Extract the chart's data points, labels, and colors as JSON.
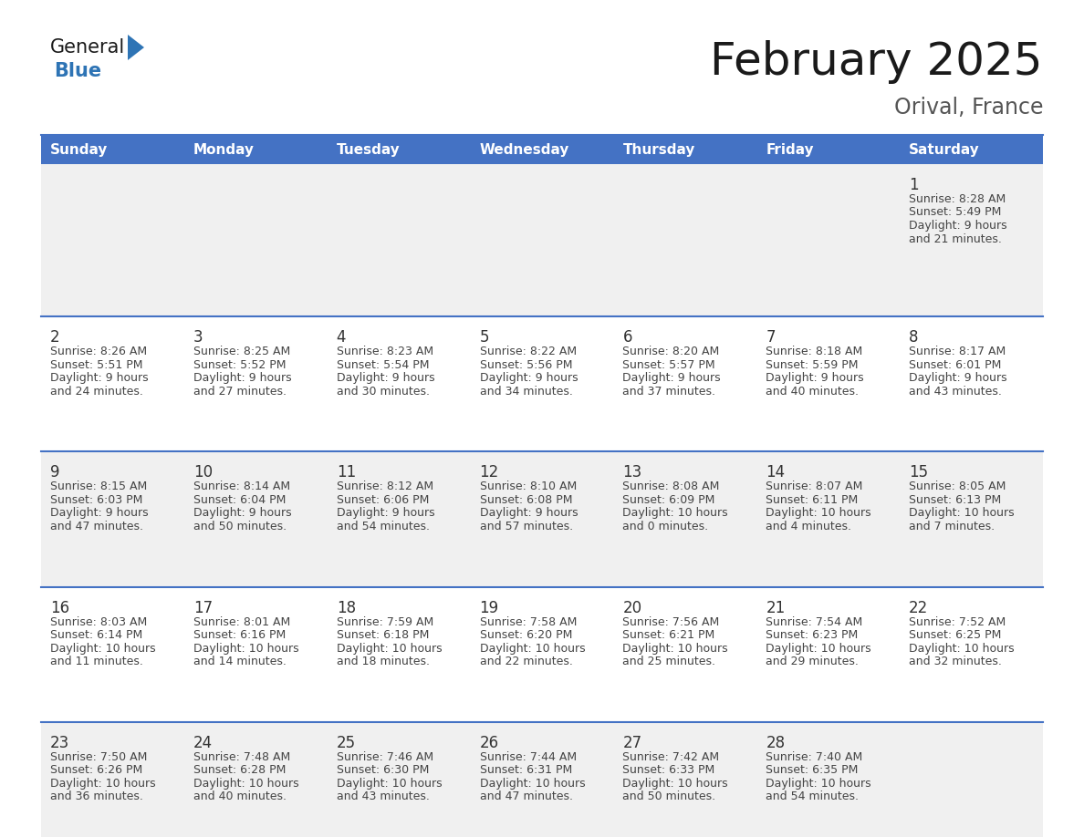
{
  "title": "February 2025",
  "subtitle": "Orival, France",
  "days_of_week": [
    "Sunday",
    "Monday",
    "Tuesday",
    "Wednesday",
    "Thursday",
    "Friday",
    "Saturday"
  ],
  "header_bg": "#4472C4",
  "header_text_color": "#FFFFFF",
  "cell_bg_odd": "#F0F0F0",
  "cell_bg_even": "#FFFFFF",
  "border_color": "#4472C4",
  "text_color": "#444444",
  "day_num_color": "#333333",
  "title_color": "#1a1a1a",
  "subtitle_color": "#555555",
  "logo_general_color": "#1a1a1a",
  "logo_blue_color": "#2E74B5",
  "calendar_data": [
    [
      null,
      null,
      null,
      null,
      null,
      null,
      {
        "day": 1,
        "sunrise": "8:28 AM",
        "sunset": "5:49 PM",
        "daylight": "9 hours\nand 21 minutes."
      }
    ],
    [
      {
        "day": 2,
        "sunrise": "8:26 AM",
        "sunset": "5:51 PM",
        "daylight": "9 hours\nand 24 minutes."
      },
      {
        "day": 3,
        "sunrise": "8:25 AM",
        "sunset": "5:52 PM",
        "daylight": "9 hours\nand 27 minutes."
      },
      {
        "day": 4,
        "sunrise": "8:23 AM",
        "sunset": "5:54 PM",
        "daylight": "9 hours\nand 30 minutes."
      },
      {
        "day": 5,
        "sunrise": "8:22 AM",
        "sunset": "5:56 PM",
        "daylight": "9 hours\nand 34 minutes."
      },
      {
        "day": 6,
        "sunrise": "8:20 AM",
        "sunset": "5:57 PM",
        "daylight": "9 hours\nand 37 minutes."
      },
      {
        "day": 7,
        "sunrise": "8:18 AM",
        "sunset": "5:59 PM",
        "daylight": "9 hours\nand 40 minutes."
      },
      {
        "day": 8,
        "sunrise": "8:17 AM",
        "sunset": "6:01 PM",
        "daylight": "9 hours\nand 43 minutes."
      }
    ],
    [
      {
        "day": 9,
        "sunrise": "8:15 AM",
        "sunset": "6:03 PM",
        "daylight": "9 hours\nand 47 minutes."
      },
      {
        "day": 10,
        "sunrise": "8:14 AM",
        "sunset": "6:04 PM",
        "daylight": "9 hours\nand 50 minutes."
      },
      {
        "day": 11,
        "sunrise": "8:12 AM",
        "sunset": "6:06 PM",
        "daylight": "9 hours\nand 54 minutes."
      },
      {
        "day": 12,
        "sunrise": "8:10 AM",
        "sunset": "6:08 PM",
        "daylight": "9 hours\nand 57 minutes."
      },
      {
        "day": 13,
        "sunrise": "8:08 AM",
        "sunset": "6:09 PM",
        "daylight": "10 hours\nand 0 minutes."
      },
      {
        "day": 14,
        "sunrise": "8:07 AM",
        "sunset": "6:11 PM",
        "daylight": "10 hours\nand 4 minutes."
      },
      {
        "day": 15,
        "sunrise": "8:05 AM",
        "sunset": "6:13 PM",
        "daylight": "10 hours\nand 7 minutes."
      }
    ],
    [
      {
        "day": 16,
        "sunrise": "8:03 AM",
        "sunset": "6:14 PM",
        "daylight": "10 hours\nand 11 minutes."
      },
      {
        "day": 17,
        "sunrise": "8:01 AM",
        "sunset": "6:16 PM",
        "daylight": "10 hours\nand 14 minutes."
      },
      {
        "day": 18,
        "sunrise": "7:59 AM",
        "sunset": "6:18 PM",
        "daylight": "10 hours\nand 18 minutes."
      },
      {
        "day": 19,
        "sunrise": "7:58 AM",
        "sunset": "6:20 PM",
        "daylight": "10 hours\nand 22 minutes."
      },
      {
        "day": 20,
        "sunrise": "7:56 AM",
        "sunset": "6:21 PM",
        "daylight": "10 hours\nand 25 minutes."
      },
      {
        "day": 21,
        "sunrise": "7:54 AM",
        "sunset": "6:23 PM",
        "daylight": "10 hours\nand 29 minutes."
      },
      {
        "day": 22,
        "sunrise": "7:52 AM",
        "sunset": "6:25 PM",
        "daylight": "10 hours\nand 32 minutes."
      }
    ],
    [
      {
        "day": 23,
        "sunrise": "7:50 AM",
        "sunset": "6:26 PM",
        "daylight": "10 hours\nand 36 minutes."
      },
      {
        "day": 24,
        "sunrise": "7:48 AM",
        "sunset": "6:28 PM",
        "daylight": "10 hours\nand 40 minutes."
      },
      {
        "day": 25,
        "sunrise": "7:46 AM",
        "sunset": "6:30 PM",
        "daylight": "10 hours\nand 43 minutes."
      },
      {
        "day": 26,
        "sunrise": "7:44 AM",
        "sunset": "6:31 PM",
        "daylight": "10 hours\nand 47 minutes."
      },
      {
        "day": 27,
        "sunrise": "7:42 AM",
        "sunset": "6:33 PM",
        "daylight": "10 hours\nand 50 minutes."
      },
      {
        "day": 28,
        "sunrise": "7:40 AM",
        "sunset": "6:35 PM",
        "daylight": "10 hours\nand 54 minutes."
      },
      null
    ]
  ]
}
